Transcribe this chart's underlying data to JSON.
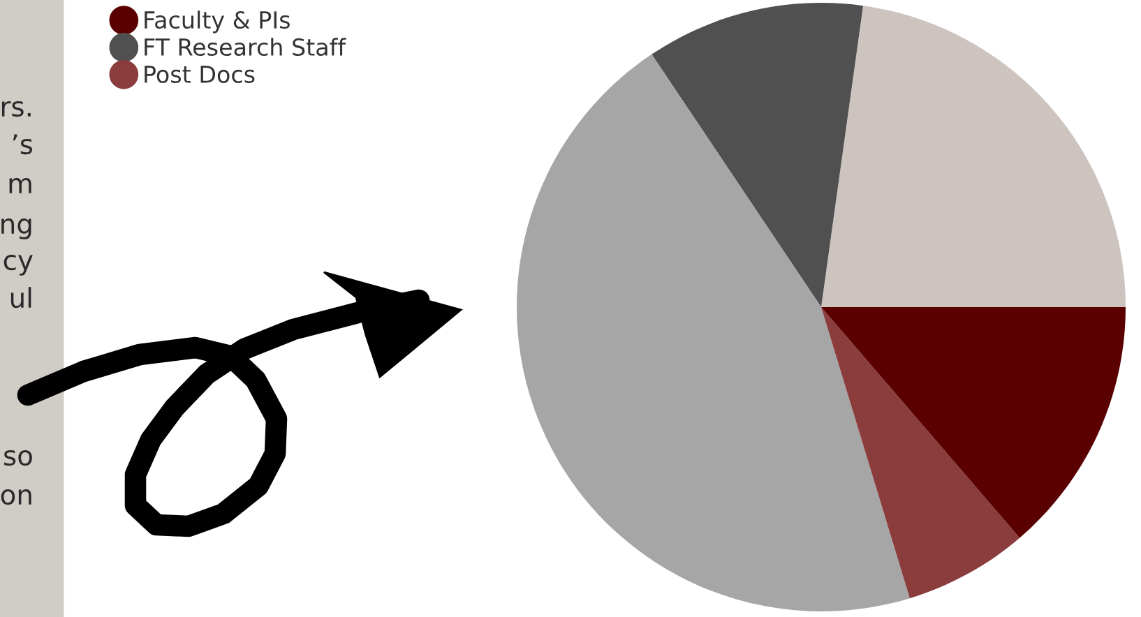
{
  "chart_data": {
    "type": "pie",
    "categories": [
      null,
      "FT Research Staff",
      null,
      "Post Docs",
      "Faculty & PIs"
    ],
    "values": [
      22.8,
      11.6,
      45.3,
      6.6,
      13.7
    ],
    "colors": [
      "#cdc4bf",
      "#505050",
      "#a6a6a6",
      "#8b3d3d",
      "#5a0000"
    ],
    "legend": "top left",
    "annotations": [
      "rs.",
      "’s",
      "m",
      "ng",
      "cy",
      "ul",
      "so",
      "on"
    ]
  }
}
